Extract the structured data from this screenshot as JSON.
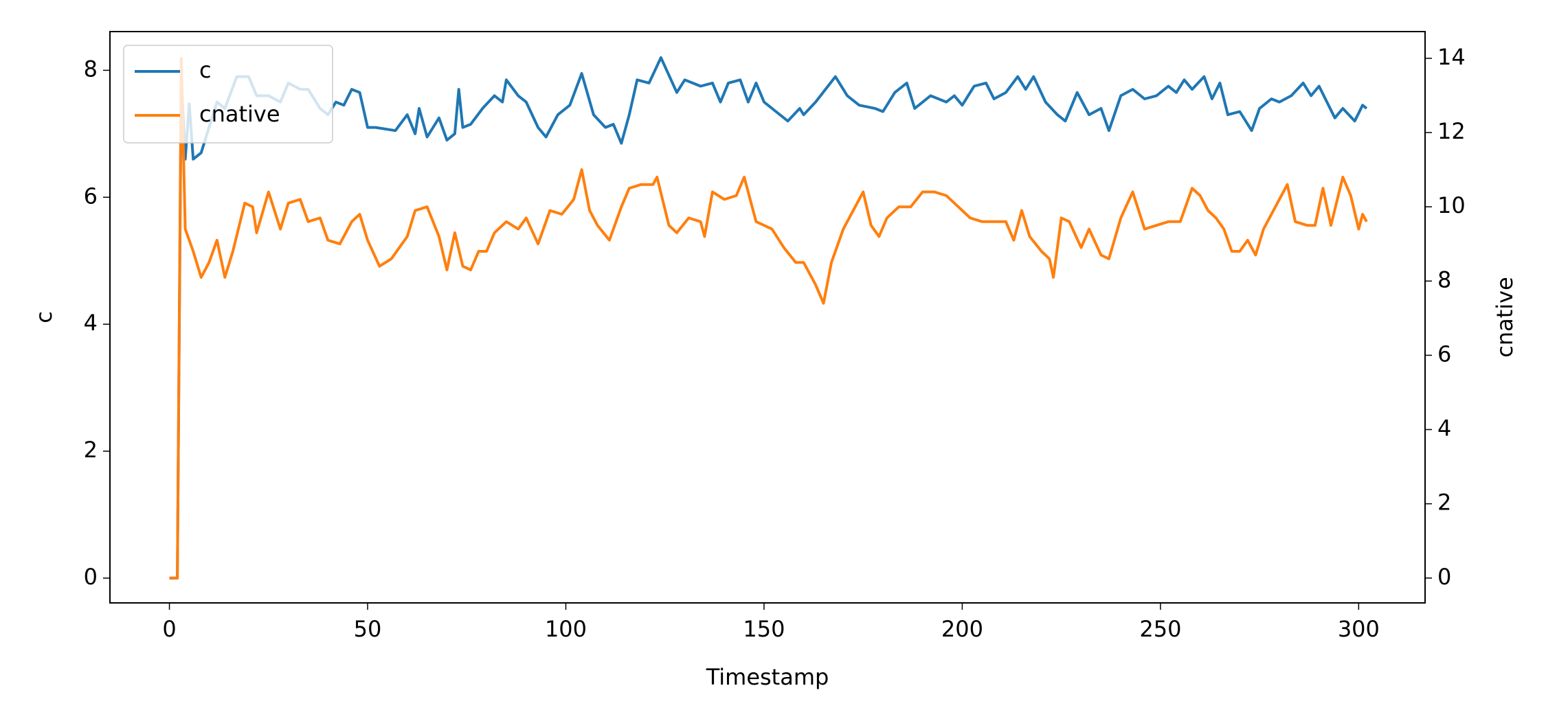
{
  "chart_data": {
    "type": "line",
    "xlabel": "Timestamp",
    "ylabel": "c",
    "y2label": "cnative",
    "xlim": [
      -15,
      316.75
    ],
    "ylim": [
      -0.39,
      8.61
    ],
    "y2lim": [
      -0.67,
      14.72
    ],
    "xticks": [
      0,
      50,
      100,
      150,
      200,
      250,
      300
    ],
    "yticks": [
      0,
      2,
      4,
      6,
      8
    ],
    "y2ticks": [
      0,
      2,
      4,
      6,
      8,
      10,
      12,
      14
    ],
    "legend": "upper left",
    "series": [
      {
        "name": "c",
        "color": "#1f77b4",
        "axis": "y",
        "x": [
          0,
          2,
          3,
          4,
          5,
          6,
          8,
          10,
          12,
          14,
          17,
          20,
          22,
          25,
          28,
          30,
          33,
          35,
          38,
          40,
          42,
          44,
          46,
          48,
          50,
          52,
          57,
          60,
          62,
          63,
          65,
          68,
          70,
          72,
          73,
          74,
          76,
          79,
          82,
          84,
          85,
          88,
          90,
          93,
          95,
          98,
          101,
          104,
          107,
          110,
          112,
          114,
          116,
          118,
          121,
          124,
          128,
          130,
          134,
          137,
          139,
          141,
          144,
          146,
          148,
          150,
          153,
          156,
          159,
          160,
          163,
          168,
          171,
          174,
          178,
          180,
          183,
          186,
          188,
          192,
          196,
          198,
          200,
          203,
          206,
          208,
          211,
          214,
          216,
          218,
          221,
          224,
          226,
          229,
          232,
          235,
          237,
          240,
          243,
          246,
          249,
          252,
          254,
          256,
          258,
          261,
          263,
          265,
          267,
          270,
          273,
          275,
          278,
          280,
          283,
          286,
          288,
          290,
          292,
          294,
          296,
          299,
          301,
          302
        ],
        "values": [
          0,
          0,
          7.9,
          6.6,
          7.47,
          6.6,
          6.7,
          7.1,
          7.5,
          7.4,
          7.9,
          7.9,
          7.6,
          7.6,
          7.5,
          7.8,
          7.7,
          7.7,
          7.4,
          7.3,
          7.5,
          7.45,
          7.7,
          7.65,
          7.1,
          7.1,
          7.05,
          7.3,
          7.0,
          7.4,
          6.95,
          7.25,
          6.9,
          7.0,
          7.7,
          7.1,
          7.15,
          7.4,
          7.6,
          7.5,
          7.85,
          7.6,
          7.5,
          7.1,
          6.95,
          7.3,
          7.45,
          7.95,
          7.3,
          7.1,
          7.15,
          6.85,
          7.3,
          7.85,
          7.8,
          8.2,
          7.65,
          7.85,
          7.75,
          7.8,
          7.5,
          7.8,
          7.85,
          7.5,
          7.8,
          7.5,
          7.35,
          7.2,
          7.4,
          7.3,
          7.5,
          7.9,
          7.6,
          7.45,
          7.4,
          7.35,
          7.65,
          7.8,
          7.4,
          7.6,
          7.5,
          7.6,
          7.45,
          7.75,
          7.8,
          7.55,
          7.65,
          7.9,
          7.7,
          7.9,
          7.5,
          7.3,
          7.2,
          7.65,
          7.3,
          7.4,
          7.05,
          7.6,
          7.7,
          7.55,
          7.6,
          7.75,
          7.65,
          7.85,
          7.7,
          7.9,
          7.55,
          7.8,
          7.3,
          7.35,
          7.05,
          7.4,
          7.55,
          7.5,
          7.6,
          7.8,
          7.6,
          7.75,
          7.5,
          7.25,
          7.4,
          7.2,
          7.45,
          7.4
        ]
      },
      {
        "name": "cnative",
        "color": "#ff7f0e",
        "axis": "y2",
        "x": [
          0,
          2,
          3,
          4,
          6,
          8,
          10,
          12,
          14,
          16,
          19,
          21,
          22,
          25,
          28,
          30,
          33,
          35,
          38,
          40,
          43,
          46,
          48,
          50,
          53,
          56,
          60,
          62,
          65,
          68,
          70,
          72,
          74,
          76,
          78,
          80,
          82,
          85,
          88,
          90,
          93,
          96,
          99,
          102,
          104,
          106,
          108,
          111,
          114,
          116,
          119,
          122,
          123,
          126,
          128,
          131,
          134,
          135,
          137,
          140,
          143,
          145,
          148,
          152,
          155,
          158,
          160,
          163,
          165,
          167,
          170,
          173,
          175,
          177,
          179,
          181,
          184,
          187,
          190,
          193,
          196,
          199,
          202,
          205,
          208,
          211,
          213,
          215,
          217,
          220,
          222,
          223,
          225,
          227,
          230,
          232,
          235,
          237,
          240,
          243,
          246,
          249,
          252,
          255,
          258,
          260,
          262,
          264,
          266,
          268,
          270,
          272,
          274,
          276,
          279,
          282,
          284,
          287,
          289,
          291,
          293,
          296,
          298,
          300,
          301,
          302
        ],
        "values": [
          0,
          0,
          14.0,
          9.4,
          8.8,
          8.1,
          8.5,
          9.1,
          8.1,
          8.8,
          10.1,
          10.0,
          9.3,
          10.4,
          9.4,
          10.1,
          10.2,
          9.6,
          9.7,
          9.1,
          9.0,
          9.6,
          9.8,
          9.1,
          8.4,
          8.6,
          9.2,
          9.9,
          10.0,
          9.2,
          8.3,
          9.3,
          8.4,
          8.3,
          8.8,
          8.8,
          9.3,
          9.6,
          9.4,
          9.7,
          9.0,
          9.9,
          9.8,
          10.2,
          11.0,
          9.9,
          9.5,
          9.1,
          10.0,
          10.5,
          10.6,
          10.6,
          10.8,
          9.5,
          9.3,
          9.7,
          9.6,
          9.2,
          10.4,
          10.2,
          10.3,
          10.8,
          9.6,
          9.4,
          8.9,
          8.5,
          8.5,
          7.9,
          7.4,
          8.5,
          9.4,
          10.0,
          10.4,
          9.5,
          9.2,
          9.7,
          10.0,
          10.0,
          10.4,
          10.4,
          10.3,
          10.0,
          9.7,
          9.6,
          9.6,
          9.6,
          9.1,
          9.9,
          9.2,
          8.8,
          8.6,
          8.1,
          9.7,
          9.6,
          8.9,
          9.4,
          8.7,
          8.6,
          9.7,
          10.4,
          9.4,
          9.5,
          9.6,
          9.6,
          10.5,
          10.3,
          9.9,
          9.7,
          9.4,
          8.8,
          8.8,
          9.1,
          8.7,
          9.4,
          10.0,
          10.6,
          9.6,
          9.5,
          9.5,
          10.5,
          9.5,
          10.8,
          10.3,
          9.4,
          9.8,
          9.6
        ]
      }
    ]
  }
}
